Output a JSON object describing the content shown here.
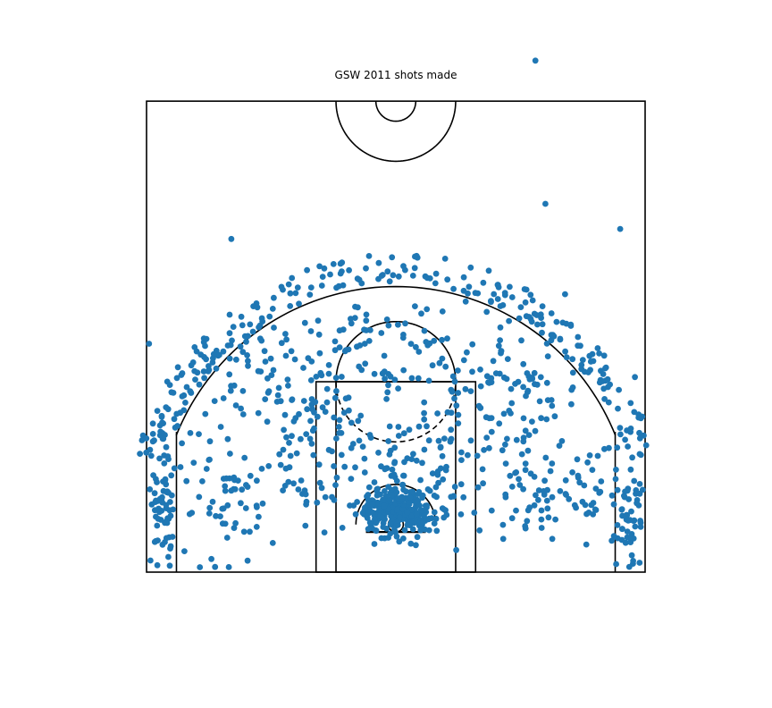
{
  "chart_data": {
    "type": "scatter",
    "title": "GSW 2011 shots made",
    "xlabel": "",
    "ylabel": "",
    "xlim": [
      -250,
      250
    ],
    "ylim": [
      -47.5,
      370
    ],
    "y_inverted_on_screen": false,
    "grid": false,
    "axes_visible": false,
    "legend": "none",
    "court_overlay": true,
    "series": [
      {
        "color": "#1f77b4",
        "clusters": [
          {
            "center": [
              0,
              12
            ],
            "spread": [
              22,
              12
            ],
            "count": 260
          },
          {
            "center": [
              0,
              55
            ],
            "spread": [
              30,
              30
            ],
            "count": 80
          },
          {
            "center": [
              -233,
              10
            ],
            "spread": [
              7,
              30
            ],
            "count": 55
          },
          {
            "center": [
              233,
              10
            ],
            "spread": [
              7,
              30
            ],
            "count": 55
          },
          {
            "center": [
              -150,
              30
            ],
            "spread": [
              45,
              30
            ],
            "count": 90
          },
          {
            "center": [
              150,
              30
            ],
            "spread": [
              45,
              30
            ],
            "count": 90
          },
          {
            "center": [
              -120,
              145
            ],
            "spread": [
              45,
              35
            ],
            "count": 90
          },
          {
            "center": [
              120,
              145
            ],
            "spread": [
              45,
              35
            ],
            "count": 90
          },
          {
            "center": [
              0,
              175
            ],
            "spread": [
              40,
              25
            ],
            "count": 60
          },
          {
            "center": [
              -75,
              95
            ],
            "spread": [
              30,
              30
            ],
            "count": 50
          },
          {
            "center": [
              75,
              95
            ],
            "spread": [
              30,
              30
            ],
            "count": 50
          }
        ],
        "three_point_arc": {
          "radius_range": [
            240,
            270
          ],
          "count": 230
        },
        "outliers": [
          [
            140,
            463
          ],
          [
            150,
            320
          ],
          [
            225,
            295
          ],
          [
            -165,
            285
          ],
          [
            -90,
            20
          ],
          [
            160,
            5
          ],
          [
            240,
            -2
          ],
          [
            200,
            15
          ]
        ]
      }
    ]
  }
}
